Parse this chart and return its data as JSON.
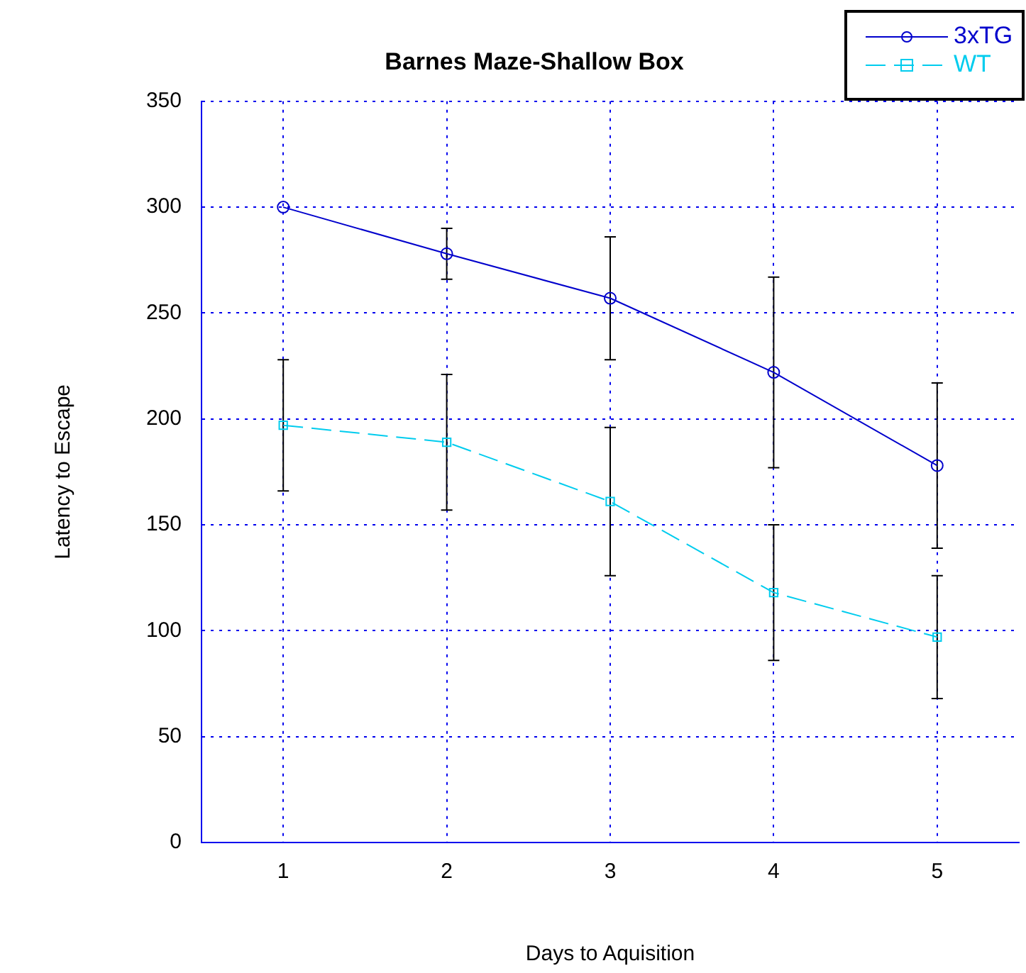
{
  "chart_data": {
    "type": "line",
    "title": "Barnes Maze-Shallow Box",
    "xlabel": "Days to Aquisition",
    "ylabel": "Latency to Escape",
    "x": [
      1,
      2,
      3,
      4,
      5
    ],
    "series": [
      {
        "name": "3xTG",
        "color": "#0000cc",
        "values": [
          300,
          278,
          257,
          222,
          178
        ],
        "errors": [
          null,
          12,
          29,
          45,
          39
        ],
        "marker": "circle",
        "line_style": "solid"
      },
      {
        "name": "WT",
        "color": "#00ccee",
        "values": [
          197,
          189,
          161,
          118,
          97
        ],
        "errors": [
          31,
          32,
          35,
          32,
          29
        ],
        "marker": "square",
        "line_style": "dashed"
      }
    ],
    "xlim": [
      0.5,
      5.5
    ],
    "xticks": [
      1,
      2,
      3,
      4,
      5
    ],
    "ylim": [
      0,
      350
    ],
    "yticks": [
      0,
      50,
      100,
      150,
      200,
      250,
      300,
      350
    ],
    "grid": true,
    "legend": "top right"
  }
}
